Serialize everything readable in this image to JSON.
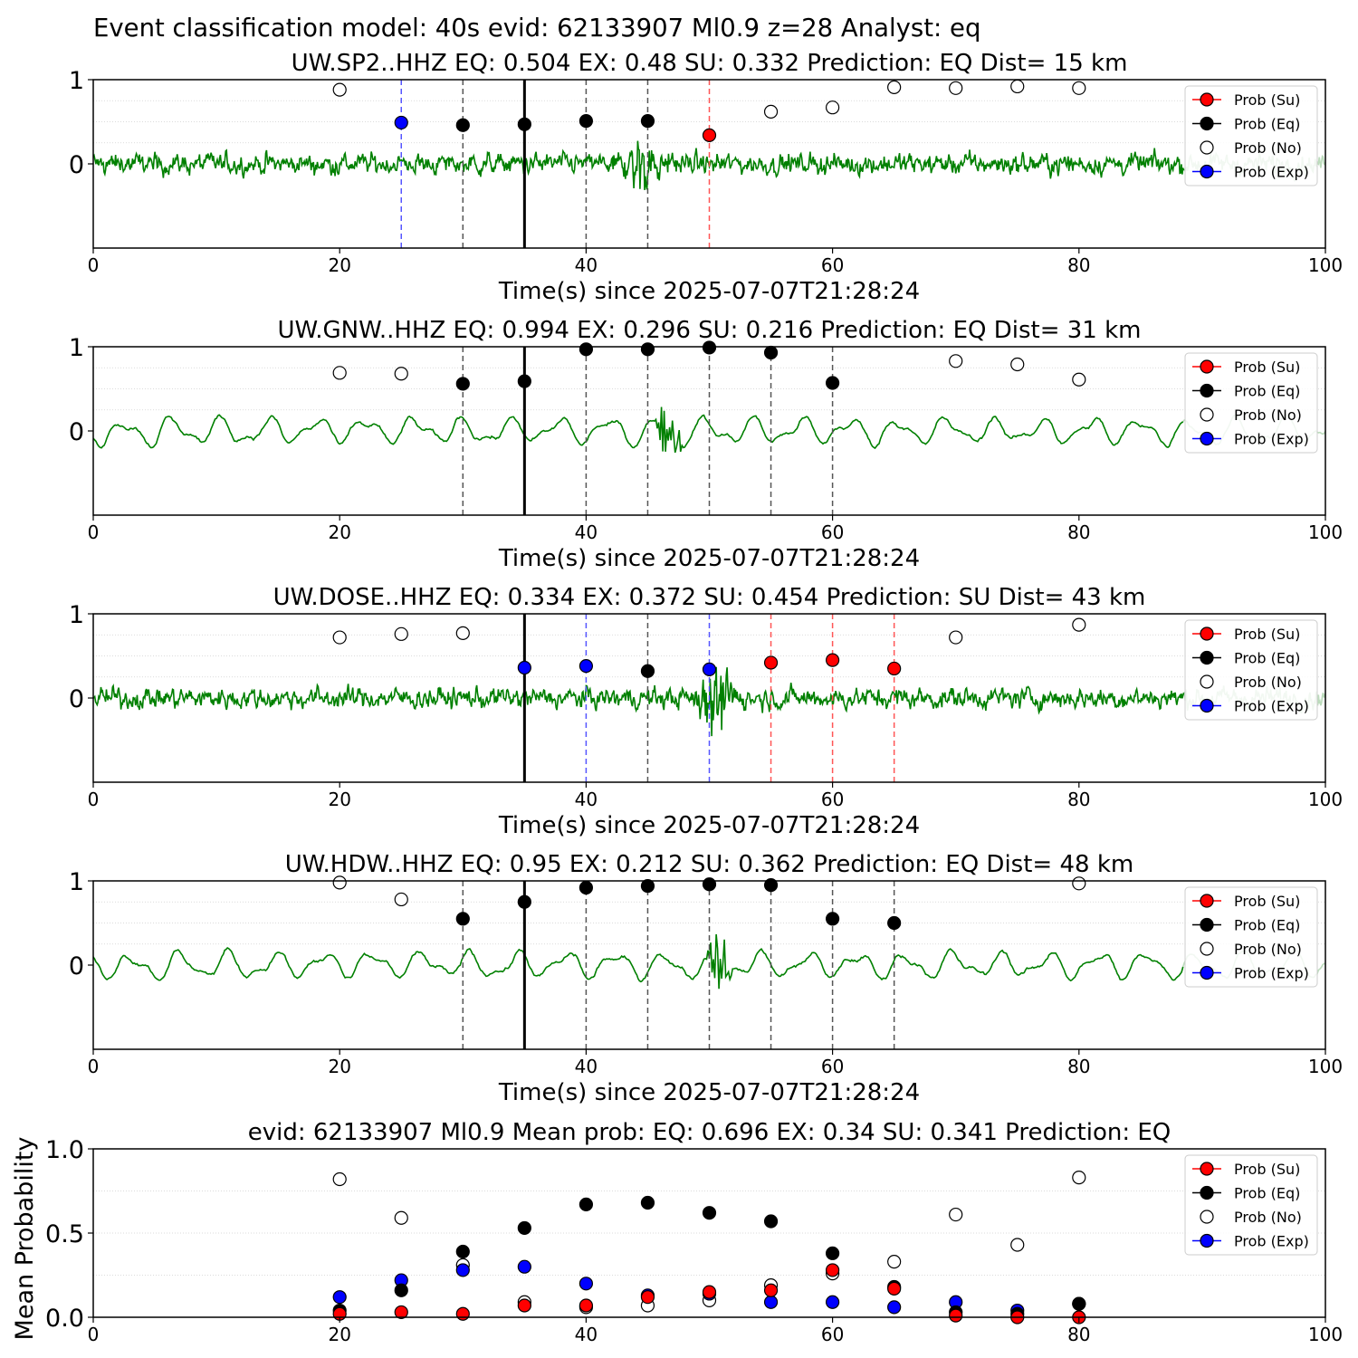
{
  "suptitle": "Event classification model: 40s evid: 62133907 Ml0.9 z=28 Analyst: eq",
  "colors": {
    "su": "#ff0000",
    "eq": "#000000",
    "no": "#ffffff",
    "exp": "#0000ff",
    "waveform": "#008000",
    "waveform_faded": "#bcdcbc"
  },
  "legend_labels": [
    "Prob (Su)",
    "Prob (Eq)",
    "Prob (No)",
    "Prob (Exp)"
  ],
  "chart_data": [
    {
      "type": "line",
      "station": "UW.SP2..HHZ",
      "title": "UW.SP2..HHZ   EQ: 0.504  EX: 0.48  SU: 0.332   Prediction: EQ    Dist= 15 km",
      "xlabel": "Time(s) since 2025-07-07T21:28:24",
      "xlim": [
        0,
        100
      ],
      "xticks": [
        "0",
        "20",
        "40",
        "60",
        "80",
        "100"
      ],
      "yticks": [
        "0",
        "1"
      ],
      "origin_line": 35,
      "series": [
        {
          "name": "Prob (Su)",
          "x": [
            50
          ],
          "y": [
            0.34
          ]
        },
        {
          "name": "Prob (Eq)",
          "x": [
            30,
            35,
            40,
            45
          ],
          "y": [
            0.46,
            0.47,
            0.51,
            0.51
          ]
        },
        {
          "name": "Prob (No)",
          "x": [
            20,
            55,
            60,
            65,
            70,
            75,
            80
          ],
          "y": [
            0.88,
            0.62,
            0.67,
            0.91,
            0.9,
            0.92,
            0.9
          ]
        },
        {
          "name": "Prob (Exp)",
          "x": [
            25
          ],
          "y": [
            0.49
          ]
        }
      ],
      "waveform": {
        "style": "noisy",
        "burst": [
          42,
          47
        ]
      }
    },
    {
      "type": "line",
      "station": "UW.GNW..HHZ",
      "title": "UW.GNW..HHZ   EQ: 0.994  EX: 0.296  SU: 0.216   Prediction: EQ    Dist= 31 km",
      "xlabel": "Time(s) since 2025-07-07T21:28:24",
      "xlim": [
        0,
        100
      ],
      "xticks": [
        "0",
        "20",
        "40",
        "60",
        "80",
        "100"
      ],
      "yticks": [
        "0",
        "1"
      ],
      "origin_line": 35,
      "series": [
        {
          "name": "Prob (Su)",
          "x": [],
          "y": []
        },
        {
          "name": "Prob (Eq)",
          "x": [
            30,
            35,
            40,
            45,
            50,
            55,
            60
          ],
          "y": [
            0.56,
            0.59,
            0.97,
            0.97,
            0.99,
            0.93,
            0.57
          ]
        },
        {
          "name": "Prob (No)",
          "x": [
            20,
            25,
            70,
            75,
            80
          ],
          "y": [
            0.69,
            0.68,
            0.83,
            0.79,
            0.61
          ]
        },
        {
          "name": "Prob (Exp)",
          "x": [],
          "y": []
        }
      ],
      "waveform": {
        "style": "smooth",
        "burst": [
          45.5,
          48
        ]
      }
    },
    {
      "type": "line",
      "station": "UW.DOSE..HHZ",
      "title": "UW.DOSE..HHZ   EQ: 0.334  EX: 0.372  SU: 0.454   Prediction: SU    Dist= 43 km",
      "xlabel": "Time(s) since 2025-07-07T21:28:24",
      "xlim": [
        0,
        100
      ],
      "xticks": [
        "0",
        "20",
        "40",
        "60",
        "80",
        "100"
      ],
      "yticks": [
        "0",
        "1"
      ],
      "origin_line": 35,
      "series": [
        {
          "name": "Prob (Su)",
          "x": [
            55,
            60,
            65
          ],
          "y": [
            0.42,
            0.45,
            0.35
          ]
        },
        {
          "name": "Prob (Eq)",
          "x": [
            45
          ],
          "y": [
            0.32
          ]
        },
        {
          "name": "Prob (No)",
          "x": [
            20,
            25,
            30,
            70,
            80
          ],
          "y": [
            0.72,
            0.76,
            0.77,
            0.72,
            0.87
          ]
        },
        {
          "name": "Prob (Exp)",
          "x": [
            35,
            40,
            50
          ],
          "y": [
            0.36,
            0.38,
            0.34
          ]
        }
      ],
      "waveform": {
        "style": "noisy",
        "burst": [
          48,
          53
        ]
      }
    },
    {
      "type": "line",
      "station": "UW.HDW..HHZ",
      "title": "UW.HDW..HHZ   EQ: 0.95  EX: 0.212  SU: 0.362   Prediction: EQ    Dist= 48 km",
      "xlabel": "Time(s) since 2025-07-07T21:28:24",
      "xlim": [
        0,
        100
      ],
      "xticks": [
        "0",
        "20",
        "40",
        "60",
        "80",
        "100"
      ],
      "yticks": [
        "0",
        "1"
      ],
      "origin_line": 35,
      "series": [
        {
          "name": "Prob (Su)",
          "x": [],
          "y": []
        },
        {
          "name": "Prob (Eq)",
          "x": [
            30,
            35,
            40,
            45,
            50,
            55,
            60,
            65
          ],
          "y": [
            0.55,
            0.75,
            0.92,
            0.94,
            0.96,
            0.95,
            0.55,
            0.5
          ]
        },
        {
          "name": "Prob (No)",
          "x": [
            20,
            25,
            80
          ],
          "y": [
            0.98,
            0.78,
            0.97
          ]
        },
        {
          "name": "Prob (Exp)",
          "x": [],
          "y": []
        }
      ],
      "waveform": {
        "style": "smooth",
        "burst": [
          49.5,
          52
        ]
      }
    },
    {
      "type": "scatter",
      "title": "evid: 62133907  Ml0.9   Mean prob:   EQ: 0.696  EX: 0.34  SU: 0.341   Prediction: EQ",
      "ylabel": "Mean Probability",
      "xlim": [
        0,
        100
      ],
      "ylim": [
        0,
        1
      ],
      "xticks": [
        "0",
        "20",
        "40",
        "60",
        "80",
        "100"
      ],
      "yticks": [
        "0.0",
        "0.5",
        "1.0"
      ],
      "series": [
        {
          "name": "Prob (Su)",
          "x": [
            20,
            25,
            30,
            35,
            40,
            45,
            50,
            55,
            60,
            65,
            70,
            75,
            80
          ],
          "y": [
            0.02,
            0.03,
            0.02,
            0.07,
            0.07,
            0.12,
            0.15,
            0.16,
            0.28,
            0.17,
            0.01,
            0.0,
            0.0
          ]
        },
        {
          "name": "Prob (Eq)",
          "x": [
            20,
            25,
            30,
            35,
            40,
            45,
            50,
            55,
            60,
            65,
            70,
            75,
            80
          ],
          "y": [
            0.04,
            0.16,
            0.39,
            0.53,
            0.67,
            0.68,
            0.62,
            0.57,
            0.38,
            0.18,
            0.03,
            0.02,
            0.08
          ]
        },
        {
          "name": "Prob (No)",
          "x": [
            20,
            25,
            30,
            35,
            40,
            45,
            50,
            55,
            60,
            65,
            70,
            75,
            80
          ],
          "y": [
            0.82,
            0.59,
            0.31,
            0.09,
            0.06,
            0.07,
            0.1,
            0.19,
            0.26,
            0.33,
            0.61,
            0.43,
            0.83
          ]
        },
        {
          "name": "Prob (Exp)",
          "x": [
            20,
            25,
            30,
            35,
            40,
            45,
            50,
            55,
            60,
            65,
            70,
            75,
            80
          ],
          "y": [
            0.12,
            0.22,
            0.28,
            0.3,
            0.2,
            0.13,
            0.14,
            0.09,
            0.09,
            0.06,
            0.09,
            0.04,
            0.08
          ]
        }
      ]
    }
  ]
}
